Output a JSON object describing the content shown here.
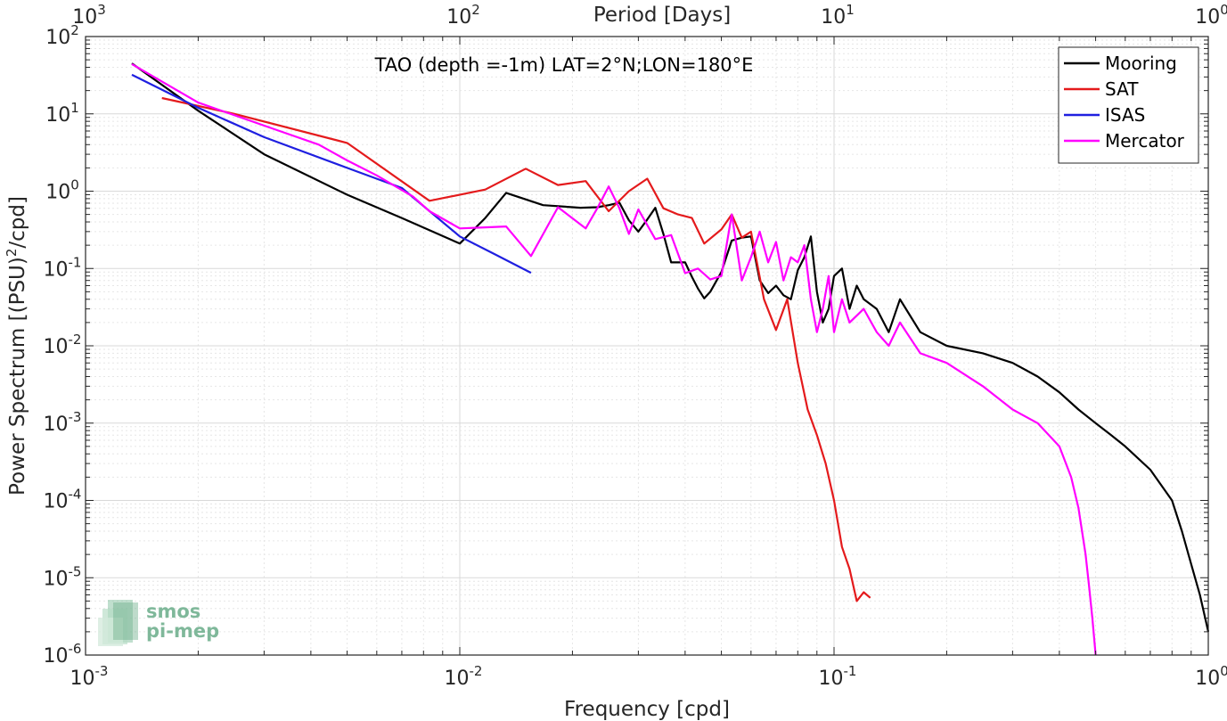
{
  "chart_data": {
    "type": "line",
    "title": "TAO (depth =-1m) LAT=2°N;LON=180°E",
    "xlabel": "Frequency [cpd]",
    "ylabel_parts": [
      "Power Spectrum [(PSU)",
      "2",
      "/cpd]"
    ],
    "top_axis_label": "Period [Days]",
    "x_scale": "log",
    "y_scale": "log",
    "xlim": [
      0.001,
      1
    ],
    "ylim": [
      1e-06,
      100
    ],
    "grid": true,
    "legend_position": "top-right",
    "x_ticks": [
      {
        "base": "10",
        "exp": "-3",
        "value": 0.001
      },
      {
        "base": "10",
        "exp": "-2",
        "value": 0.01
      },
      {
        "base": "10",
        "exp": "-1",
        "value": 0.1
      },
      {
        "base": "10",
        "exp": "0",
        "value": 1
      }
    ],
    "top_ticks": [
      {
        "base": "10",
        "exp": "3",
        "value": 0.001
      },
      {
        "base": "10",
        "exp": "2",
        "value": 0.01
      },
      {
        "base": "10",
        "exp": "1",
        "value": 0.1
      },
      {
        "base": "10",
        "exp": "0",
        "value": 1
      }
    ],
    "y_ticks": [
      {
        "base": "10",
        "exp": "2",
        "value": 100
      },
      {
        "base": "10",
        "exp": "1",
        "value": 10
      },
      {
        "base": "10",
        "exp": "0",
        "value": 1
      },
      {
        "base": "10",
        "exp": "-1",
        "value": 0.1
      },
      {
        "base": "10",
        "exp": "-2",
        "value": 0.01
      },
      {
        "base": "10",
        "exp": "-3",
        "value": 0.001
      },
      {
        "base": "10",
        "exp": "-4",
        "value": 0.0001
      },
      {
        "base": "10",
        "exp": "-5",
        "value": 1e-05
      },
      {
        "base": "10",
        "exp": "-6",
        "value": 1e-06
      }
    ],
    "series": [
      {
        "name": "Mooring",
        "color": "#000000",
        "x": [
          0.00133,
          0.002,
          0.003,
          0.005,
          0.007,
          0.01,
          0.0117,
          0.0133,
          0.0167,
          0.021,
          0.0233,
          0.025,
          0.0267,
          0.0283,
          0.03,
          0.0317,
          0.0333,
          0.035,
          0.0367,
          0.0383,
          0.04,
          0.0417,
          0.0433,
          0.045,
          0.0467,
          0.05,
          0.0533,
          0.0567,
          0.06,
          0.0633,
          0.0667,
          0.07,
          0.0733,
          0.0767,
          0.08,
          0.0833,
          0.0867,
          0.09,
          0.0933,
          0.0967,
          0.1,
          0.105,
          0.11,
          0.115,
          0.12,
          0.13,
          0.14,
          0.15,
          0.17,
          0.2,
          0.25,
          0.3,
          0.35,
          0.4,
          0.45,
          0.5,
          0.55,
          0.6,
          0.7,
          0.8,
          0.85,
          0.9,
          0.95,
          1.0
        ],
        "y": [
          45,
          11,
          3.0,
          0.9,
          0.45,
          0.21,
          0.45,
          0.95,
          0.66,
          0.61,
          0.62,
          0.66,
          0.71,
          0.42,
          0.3,
          0.43,
          0.61,
          0.28,
          0.12,
          0.12,
          0.12,
          0.078,
          0.055,
          0.041,
          0.05,
          0.09,
          0.23,
          0.25,
          0.26,
          0.07,
          0.048,
          0.06,
          0.045,
          0.04,
          0.095,
          0.14,
          0.26,
          0.05,
          0.02,
          0.03,
          0.08,
          0.1,
          0.03,
          0.06,
          0.04,
          0.03,
          0.015,
          0.04,
          0.015,
          0.01,
          0.008,
          0.006,
          0.004,
          0.0025,
          0.0015,
          0.001,
          0.0007,
          0.0005,
          0.00025,
          0.0001,
          4e-05,
          1.5e-05,
          6e-06,
          2e-06
        ]
      },
      {
        "name": "SAT",
        "color": "#e41a1c",
        "x": [
          0.0016,
          0.0025,
          0.005,
          0.0083,
          0.0117,
          0.015,
          0.0183,
          0.0217,
          0.025,
          0.0283,
          0.0317,
          0.035,
          0.0383,
          0.0417,
          0.045,
          0.05,
          0.0533,
          0.0567,
          0.06,
          0.065,
          0.07,
          0.075,
          0.08,
          0.085,
          0.09,
          0.095,
          0.1,
          0.105,
          0.11,
          0.115,
          0.12,
          0.125
        ],
        "y": [
          16,
          10,
          4.2,
          0.75,
          1.05,
          1.95,
          1.2,
          1.35,
          0.55,
          1.0,
          1.45,
          0.6,
          0.5,
          0.45,
          0.21,
          0.32,
          0.5,
          0.25,
          0.3,
          0.04,
          0.016,
          0.04,
          0.006,
          0.0015,
          0.0007,
          0.0003,
          0.0001,
          2.5e-05,
          1.3e-05,
          5e-06,
          6.5e-06,
          5.5e-06
        ]
      },
      {
        "name": "ISAS",
        "color": "#1f1fe0",
        "x": [
          0.00133,
          0.002,
          0.003,
          0.005,
          0.007,
          0.01,
          0.0125,
          0.0155
        ],
        "y": [
          32,
          12,
          5.0,
          2.0,
          1.1,
          0.26,
          0.15,
          0.088
        ]
      },
      {
        "name": "Mercator",
        "color": "#ff00ff",
        "x": [
          0.00133,
          0.002,
          0.0033,
          0.0042,
          0.005,
          0.006,
          0.0075,
          0.0083,
          0.01,
          0.0117,
          0.0133,
          0.0155,
          0.0183,
          0.0217,
          0.0233,
          0.025,
          0.0267,
          0.0283,
          0.03,
          0.0333,
          0.0367,
          0.04,
          0.0433,
          0.0467,
          0.05,
          0.0533,
          0.0567,
          0.06,
          0.0633,
          0.0667,
          0.07,
          0.0733,
          0.0767,
          0.08,
          0.0833,
          0.0867,
          0.09,
          0.0933,
          0.0967,
          0.1,
          0.105,
          0.11,
          0.12,
          0.13,
          0.14,
          0.15,
          0.17,
          0.2,
          0.25,
          0.3,
          0.35,
          0.4,
          0.43,
          0.45,
          0.47,
          0.48,
          0.49,
          0.5
        ],
        "y": [
          44,
          14,
          6.0,
          4.0,
          2.5,
          1.6,
          0.85,
          0.55,
          0.33,
          0.34,
          0.35,
          0.145,
          0.62,
          0.33,
          0.6,
          1.15,
          0.6,
          0.28,
          0.58,
          0.24,
          0.27,
          0.087,
          0.1,
          0.072,
          0.08,
          0.5,
          0.07,
          0.14,
          0.3,
          0.12,
          0.22,
          0.07,
          0.14,
          0.12,
          0.2,
          0.04,
          0.015,
          0.03,
          0.08,
          0.015,
          0.04,
          0.02,
          0.03,
          0.015,
          0.01,
          0.02,
          0.008,
          0.006,
          0.003,
          0.0015,
          0.001,
          0.0005,
          0.0002,
          8e-05,
          2e-05,
          8e-06,
          3e-06,
          1e-06
        ]
      }
    ]
  },
  "logo": {
    "line1": "smos",
    "line2": "pi-mep"
  }
}
